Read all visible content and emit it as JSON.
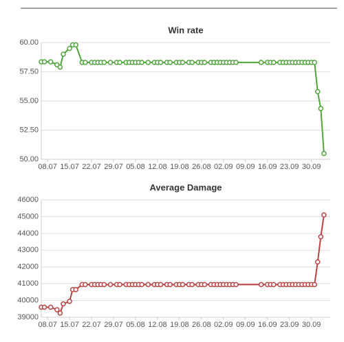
{
  "chart_data": [
    {
      "type": "line",
      "title": "Win rate",
      "color": "#4ea53a",
      "grid": true,
      "x": [
        "06.07",
        "07.07",
        "09.07",
        "11.07",
        "12.07",
        "13.07",
        "15.07",
        "16.07",
        "17.07",
        "19.07",
        "20.07",
        "22.07",
        "23.07",
        "24.07",
        "25.07",
        "26.07",
        "28.07",
        "30.07",
        "31.07",
        "02.08",
        "03.08",
        "04.08",
        "05.08",
        "06.08",
        "07.08",
        "09.08",
        "11.08",
        "12.08",
        "13.08",
        "15.08",
        "16.08",
        "18.08",
        "19.08",
        "20.08",
        "22.08",
        "23.08",
        "25.08",
        "26.08",
        "27.08",
        "29.08",
        "30.08",
        "31.08",
        "01.09",
        "02.09",
        "03.09",
        "04.09",
        "05.09",
        "06.09",
        "14.09",
        "16.09",
        "17.09",
        "18.09",
        "20.09",
        "21.09",
        "22.09",
        "23.09",
        "24.09",
        "25.09",
        "26.09",
        "27.09",
        "28.09",
        "29.09",
        "30.09",
        "01.10",
        "02.10",
        "03.10",
        "04.10"
      ],
      "values": [
        58.35,
        58.35,
        58.35,
        58.1,
        57.9,
        59.0,
        59.5,
        59.8,
        59.8,
        58.3,
        58.3,
        58.3,
        58.3,
        58.3,
        58.3,
        58.3,
        58.3,
        58.3,
        58.3,
        58.3,
        58.3,
        58.3,
        58.3,
        58.3,
        58.3,
        58.3,
        58.3,
        58.3,
        58.3,
        58.3,
        58.3,
        58.3,
        58.3,
        58.3,
        58.3,
        58.3,
        58.3,
        58.3,
        58.3,
        58.3,
        58.3,
        58.3,
        58.3,
        58.3,
        58.3,
        58.3,
        58.3,
        58.3,
        58.3,
        58.3,
        58.3,
        58.3,
        58.3,
        58.3,
        58.3,
        58.3,
        58.3,
        58.3,
        58.3,
        58.3,
        58.3,
        58.3,
        58.3,
        58.3,
        55.8,
        54.35,
        50.5
      ],
      "xlim": [
        "06.07",
        "06.10"
      ],
      "xticks": [
        "08.07",
        "15.07",
        "22.07",
        "29.07",
        "05.08",
        "12.08",
        "19.08",
        "26.08",
        "02.09",
        "09.09",
        "16.09",
        "23.09",
        "30.09"
      ],
      "ylim": [
        50,
        60
      ],
      "yticks": [
        {
          "value": 50,
          "label": "50.00"
        },
        {
          "value": 52.5,
          "label": "52.50"
        },
        {
          "value": 55,
          "label": "55.00"
        },
        {
          "value": 57.5,
          "label": "57.50"
        },
        {
          "value": 60,
          "label": "60.00"
        }
      ]
    },
    {
      "type": "line",
      "title": "Average Damage",
      "color": "#b94343",
      "grid": true,
      "x": [
        "06.07",
        "07.07",
        "09.07",
        "11.07",
        "12.07",
        "13.07",
        "15.07",
        "16.07",
        "17.07",
        "19.07",
        "20.07",
        "22.07",
        "23.07",
        "24.07",
        "25.07",
        "26.07",
        "28.07",
        "30.07",
        "31.07",
        "02.08",
        "03.08",
        "04.08",
        "05.08",
        "06.08",
        "07.08",
        "09.08",
        "11.08",
        "12.08",
        "13.08",
        "15.08",
        "16.08",
        "18.08",
        "19.08",
        "20.08",
        "22.08",
        "23.08",
        "25.08",
        "26.08",
        "27.08",
        "29.08",
        "30.08",
        "31.08",
        "01.09",
        "02.09",
        "03.09",
        "04.09",
        "05.09",
        "06.09",
        "14.09",
        "16.09",
        "17.09",
        "18.09",
        "20.09",
        "21.09",
        "22.09",
        "23.09",
        "24.09",
        "25.09",
        "26.09",
        "27.09",
        "28.09",
        "29.09",
        "30.09",
        "01.10",
        "02.10",
        "03.10",
        "04.10"
      ],
      "values": [
        39600,
        39600,
        39600,
        39450,
        39250,
        39800,
        39950,
        40650,
        40650,
        40950,
        40950,
        40950,
        40950,
        40950,
        40950,
        40950,
        40950,
        40950,
        40950,
        40950,
        40950,
        40950,
        40950,
        40950,
        40950,
        40950,
        40950,
        40950,
        40950,
        40950,
        40950,
        40950,
        40950,
        40950,
        40950,
        40950,
        40950,
        40950,
        40950,
        40950,
        40950,
        40950,
        40950,
        40950,
        40950,
        40950,
        40950,
        40950,
        40950,
        40950,
        40950,
        40950,
        40950,
        40950,
        40950,
        40950,
        40950,
        40950,
        40950,
        40950,
        40950,
        40950,
        40950,
        40950,
        42300,
        43800,
        45100
      ],
      "xlim": [
        "06.07",
        "06.10"
      ],
      "xticks": [
        "08.07",
        "15.07",
        "22.07",
        "29.07",
        "05.08",
        "12.08",
        "19.08",
        "26.08",
        "02.09",
        "09.09",
        "16.09",
        "23.09",
        "30.09"
      ],
      "ylim": [
        39000,
        46000
      ],
      "yticks": [
        39000,
        40000,
        41000,
        42000,
        43000,
        44000,
        45000,
        46000
      ]
    }
  ]
}
